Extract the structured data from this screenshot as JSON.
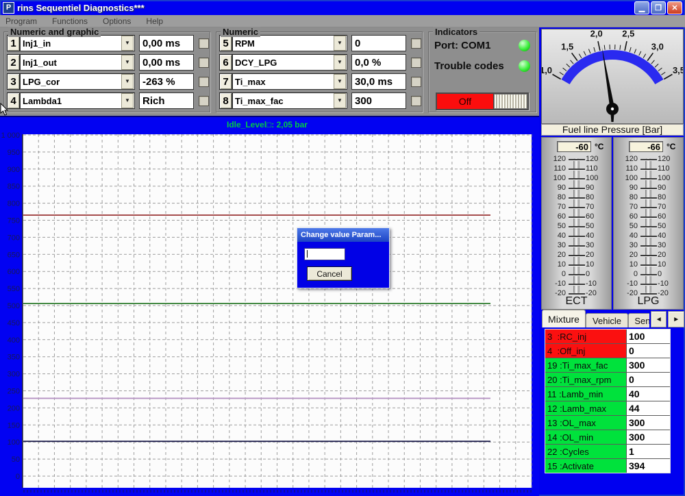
{
  "window": {
    "title": "rins Sequentiel Diagnostics***",
    "icon_letter": "P",
    "buttons": {
      "minimize": "▁",
      "restore": "❐",
      "close": "✕"
    }
  },
  "icons": {
    "dropdown_arrow": "▼",
    "tab_scroll_left": "◄",
    "tab_scroll_right": "►"
  },
  "menu": {
    "items": [
      "Program",
      "Functions",
      "Options",
      "Help"
    ]
  },
  "numeric_graphic": {
    "title": "Numeric and graphic",
    "rows": [
      {
        "num": "1",
        "param": "Inj1_in",
        "value": "0,00 ms"
      },
      {
        "num": "2",
        "param": "Inj1_out",
        "value": "0,00 ms"
      },
      {
        "num": "3",
        "param": "LPG_cor",
        "value": "-263 %"
      },
      {
        "num": "4",
        "param": "Lambda1",
        "value": "Rich"
      }
    ]
  },
  "numeric": {
    "title": "Numeric",
    "rows": [
      {
        "num": "5",
        "param": "RPM",
        "value": "0"
      },
      {
        "num": "6",
        "param": "DCY_LPG",
        "value": "0,0 %"
      },
      {
        "num": "7",
        "param": "Ti_max",
        "value": "30,0 ms"
      },
      {
        "num": "8",
        "param": "Ti_max_fac",
        "value": "300"
      }
    ]
  },
  "indicators": {
    "title": "Indicators",
    "port_label": "Port: COM1",
    "trouble_label": "Trouble codes",
    "led_color": "#3bee3b",
    "toggle_label": "Off",
    "toggle_color": "#fb0d0d"
  },
  "gauge": {
    "title": "Fuel line Pressure [Bar]",
    "min": 1.0,
    "max": 3.5,
    "value": 2.05,
    "tick_labels": [
      "1,0",
      "1,5",
      "2,0",
      "2,5",
      "3,0",
      "3,5"
    ],
    "band_color": "#2a2af0"
  },
  "thermometers": [
    {
      "value": "-60",
      "unit": "°C",
      "label": "ECT",
      "scale_max": 120,
      "scale_min": -20,
      "step": 10
    },
    {
      "value": "-66",
      "unit": "°C",
      "label": "LPG",
      "scale_max": 120,
      "scale_min": -20,
      "step": 10
    }
  ],
  "tabs": {
    "items": [
      "Mixture",
      "Vehicle",
      "Sensor"
    ],
    "active": "Mixture"
  },
  "param_table": {
    "rows": [
      {
        "num": "3",
        "name": "RC_inj",
        "value": "100",
        "row_color": "#fb1010"
      },
      {
        "num": "4",
        "name": "Off_inj",
        "value": "0",
        "row_color": "#fb1010"
      },
      {
        "num": "19",
        "name": "Ti_max_fac",
        "value": "300",
        "row_color": "#00e23c"
      },
      {
        "num": "20",
        "name": "Ti_max_rpm",
        "value": "0",
        "row_color": "#00e23c"
      },
      {
        "num": "11",
        "name": "Lamb_min",
        "value": "40",
        "row_color": "#00e23c"
      },
      {
        "num": "12",
        "name": "Lamb_max",
        "value": "44",
        "row_color": "#00e23c"
      },
      {
        "num": "13",
        "name": "OL_max",
        "value": "300",
        "row_color": "#00e23c"
      },
      {
        "num": "14",
        "name": "OL_min",
        "value": "300",
        "row_color": "#00e23c"
      },
      {
        "num": "22",
        "name": "Cycles",
        "value": "1",
        "row_color": "#00e23c"
      },
      {
        "num": "15",
        "name": "Activate",
        "value": "394",
        "row_color": "#00e23c"
      }
    ]
  },
  "chart_data": {
    "type": "line",
    "title": "Idle_Level□: 2,05 bar",
    "title_color": "#00cc44",
    "xlabel": "",
    "ylabel": "",
    "ylim": [
      0,
      1000
    ],
    "ytick_step": 50,
    "grid": true,
    "legend": "none",
    "series": [
      {
        "name": "trace-red",
        "color": "#9a3434",
        "value": 765
      },
      {
        "name": "trace-green",
        "color": "#2a7a2a",
        "value": 506
      },
      {
        "name": "trace-purple",
        "color": "#b492c2",
        "value": 228
      },
      {
        "name": "trace-navy",
        "color": "#20204e",
        "value": 102
      }
    ]
  },
  "dialog": {
    "title": "Change value Param...",
    "input_value": "",
    "cancel_label": "Cancel"
  }
}
